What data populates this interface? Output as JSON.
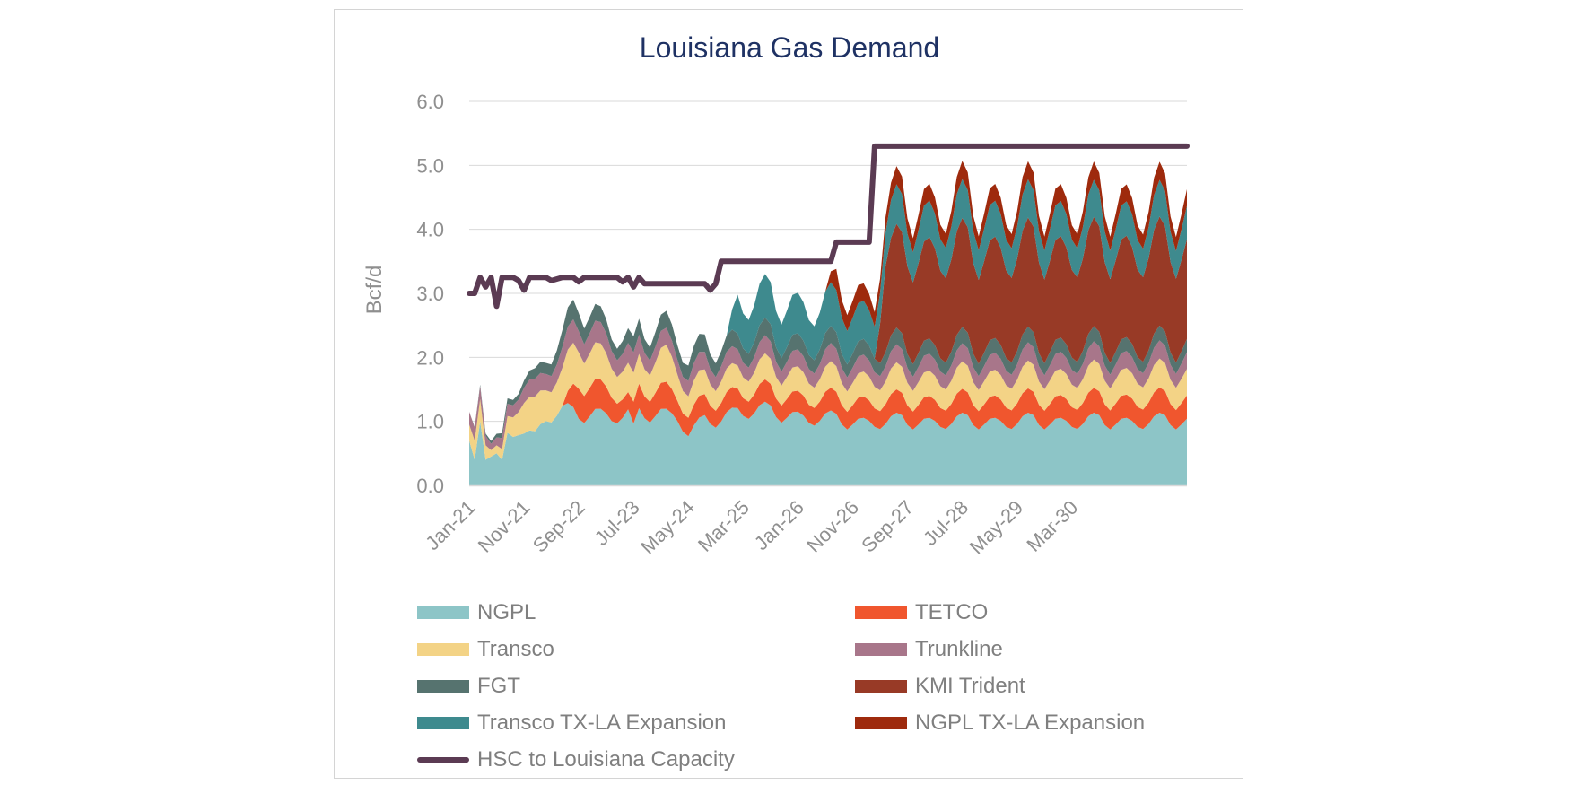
{
  "chart_data": {
    "type": "area",
    "title": "Louisiana Gas Demand",
    "xlabel": "",
    "ylabel": "Bcf/d",
    "ylim": [
      0,
      6
    ],
    "yticks": [
      "0.0",
      "1.0",
      "2.0",
      "3.0",
      "4.0",
      "5.0",
      "6.0"
    ],
    "x_start": "Jan-21",
    "x_end": "Dec-31",
    "x_tick_labels": [
      "Jan-21",
      "Nov-21",
      "Sep-22",
      "Jul-23",
      "May-24",
      "Mar-25",
      "Jan-26",
      "Nov-26",
      "Sep-27",
      "Jul-28",
      "May-29",
      "Mar-30"
    ],
    "grid": true,
    "stacked": true,
    "legend_position": "bottom",
    "series": [
      {
        "name": "NGPL",
        "color": "#8dc5c7",
        "anchors": [
          [
            "Jan-21",
            0.7
          ],
          [
            "Feb-21",
            0.4
          ],
          [
            "Mar-21",
            1.0
          ],
          [
            "Apr-21",
            0.4
          ],
          [
            "May-21",
            0.45
          ],
          [
            "Jun-21",
            0.5
          ],
          [
            "Jul-21",
            0.35
          ],
          [
            "Aug-21",
            0.75
          ],
          [
            "Sep-21",
            0.8
          ],
          [
            "Oct-21",
            0.9
          ],
          [
            "Nov-21",
            0.85
          ],
          [
            "Jan-22",
            0.8
          ],
          [
            "Mar-22",
            1.1
          ],
          [
            "Jun-22",
            1.15
          ],
          [
            "Sep-22",
            1.1
          ],
          [
            "Dec-22",
            1.15
          ],
          [
            "Mar-23",
            1.1
          ],
          [
            "Jun-23",
            1.1
          ],
          [
            "Jul-23",
            0.85
          ],
          [
            "Aug-23",
            1.1
          ],
          [
            "Dec-23",
            1.15
          ],
          [
            "Mar-24",
            1.1
          ],
          [
            "May-24",
            0.8
          ],
          [
            "Aug-24",
            1.0
          ],
          [
            "Nov-24",
            1.05
          ],
          [
            "Feb-25",
            1.2
          ],
          [
            "Dec-25",
            1.1
          ],
          [
            "Oct-26",
            1.0
          ],
          [
            "Dec-31",
            1.0
          ]
        ]
      },
      {
        "name": "TETCO",
        "color": "#f0562e",
        "anchors": [
          [
            "Jan-21",
            0.0
          ],
          [
            "Jun-22",
            0.0
          ],
          [
            "Sep-22",
            0.5
          ],
          [
            "Mar-23",
            0.4
          ],
          [
            "Jun-23",
            0.25
          ],
          [
            "Aug-23",
            0.35
          ],
          [
            "Jan-24",
            0.4
          ],
          [
            "May-24",
            0.3
          ],
          [
            "Dec-31",
            0.35
          ]
        ]
      },
      {
        "name": "Transco",
        "color": "#f3d386",
        "anchors": [
          [
            "Jan-21",
            0.25
          ],
          [
            "Mar-21",
            0.35
          ],
          [
            "May-21",
            0.1
          ],
          [
            "Jul-21",
            0.15
          ],
          [
            "Nov-21",
            0.5
          ],
          [
            "Jun-22",
            0.55
          ],
          [
            "Sep-22",
            0.6
          ],
          [
            "Mar-23",
            0.5
          ],
          [
            "Jul-23",
            0.4
          ],
          [
            "Jan-24",
            0.55
          ],
          [
            "May-24",
            0.35
          ],
          [
            "Dec-31",
            0.4
          ]
        ]
      },
      {
        "name": "Trunkline",
        "color": "#a8768a",
        "anchors": [
          [
            "Jan-21",
            0.2
          ],
          [
            "Mar-21",
            0.2
          ],
          [
            "May-21",
            0.1
          ],
          [
            "Nov-21",
            0.25
          ],
          [
            "Jun-22",
            0.3
          ],
          [
            "Sep-22",
            0.35
          ],
          [
            "Mar-23",
            0.3
          ],
          [
            "Jan-24",
            0.25
          ],
          [
            "Dec-31",
            0.25
          ]
        ]
      },
      {
        "name": "FGT",
        "color": "#56736f",
        "anchors": [
          [
            "Jan-21",
            0.0
          ],
          [
            "Oct-21",
            0.1
          ],
          [
            "Sep-22",
            0.3
          ],
          [
            "Mar-23",
            0.2
          ],
          [
            "Jan-24",
            0.25
          ],
          [
            "May-24",
            0.25
          ],
          [
            "Dec-31",
            0.2
          ]
        ]
      },
      {
        "name": "KMI Trident",
        "color": "#983a26",
        "anchors": [
          [
            "Jan-21",
            0.0
          ],
          [
            "Mar-27",
            0.0
          ],
          [
            "May-27",
            1.4
          ],
          [
            "Jan-28",
            1.5
          ],
          [
            "Dec-31",
            1.5
          ]
        ]
      },
      {
        "name": "Transco TX-LA Expansion",
        "color": "#3e8a8e",
        "anchors": [
          [
            "Jan-21",
            0.0
          ],
          [
            "Dec-24",
            0.0
          ],
          [
            "Feb-25",
            0.6
          ],
          [
            "Oct-26",
            0.6
          ],
          [
            "Feb-27",
            0.55
          ],
          [
            "Dec-31",
            0.5
          ]
        ]
      },
      {
        "name": "NGPL TX-LA Expansion",
        "color": "#9e2a0d",
        "anchors": [
          [
            "Jan-21",
            0.0
          ],
          [
            "Jun-26",
            0.0
          ],
          [
            "Aug-26",
            0.3
          ],
          [
            "Feb-27",
            0.25
          ],
          [
            "Dec-31",
            0.25
          ]
        ]
      }
    ],
    "line_series": {
      "name": "HSC to Louisiana Capacity",
      "color": "#5b3b53",
      "points": [
        [
          "Jan-21",
          3.0
        ],
        [
          "Feb-21",
          3.0
        ],
        [
          "Mar-21",
          3.25
        ],
        [
          "Apr-21",
          3.1
        ],
        [
          "May-21",
          3.25
        ],
        [
          "Jun-21",
          2.8
        ],
        [
          "Jul-21",
          3.25
        ],
        [
          "Aug-21",
          3.25
        ],
        [
          "Sep-21",
          3.25
        ],
        [
          "Oct-21",
          3.2
        ],
        [
          "Nov-21",
          3.05
        ],
        [
          "Dec-21",
          3.25
        ],
        [
          "Mar-22",
          3.25
        ],
        [
          "Apr-22",
          3.2
        ],
        [
          "Jun-22",
          3.25
        ],
        [
          "Aug-22",
          3.25
        ],
        [
          "Sep-22",
          3.18
        ],
        [
          "Oct-22",
          3.25
        ],
        [
          "Apr-23",
          3.25
        ],
        [
          "May-23",
          3.18
        ],
        [
          "Jun-23",
          3.25
        ],
        [
          "Jul-23",
          3.1
        ],
        [
          "Aug-23",
          3.25
        ],
        [
          "Sep-23",
          3.15
        ],
        [
          "Aug-24",
          3.15
        ],
        [
          "Sep-24",
          3.05
        ],
        [
          "Oct-24",
          3.15
        ],
        [
          "Nov-24",
          3.5
        ],
        [
          "Jul-26",
          3.5
        ],
        [
          "Aug-26",
          3.8
        ],
        [
          "Feb-27",
          3.8
        ],
        [
          "Mar-27",
          5.3
        ],
        [
          "Dec-31",
          5.3
        ]
      ]
    }
  }
}
